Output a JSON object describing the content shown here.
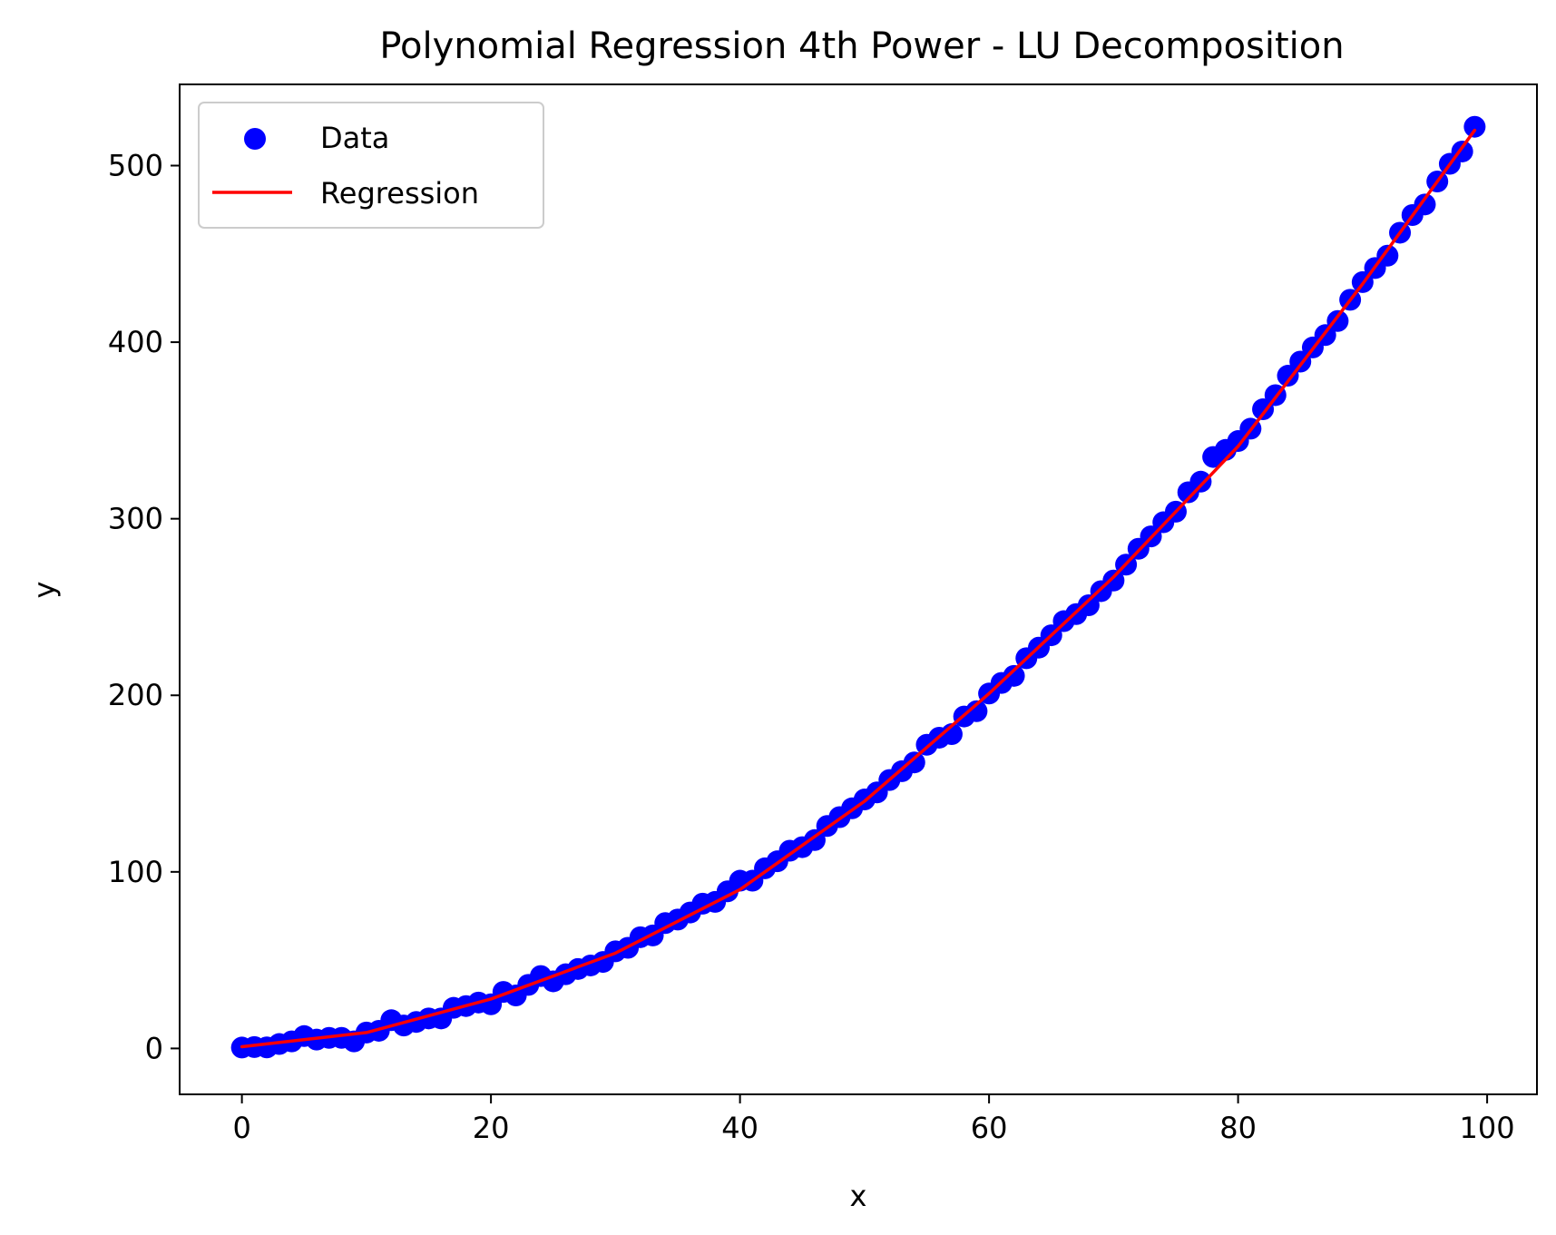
{
  "chart_data": {
    "type": "scatter",
    "title": "Polynomial Regression 4th Power - LU Decomposition",
    "xlabel": "x",
    "ylabel": "y",
    "xlim": [
      -5,
      104
    ],
    "ylim": [
      -26,
      546
    ],
    "xticks": [
      0,
      20,
      40,
      60,
      80,
      100
    ],
    "yticks": [
      0,
      100,
      200,
      300,
      400,
      500
    ],
    "grid": false,
    "legend": {
      "placement": "upper-left",
      "entries": [
        "Data",
        "Regression"
      ]
    },
    "series": [
      {
        "name": "Data",
        "kind": "scatter",
        "color": "#0000ff",
        "x": [
          0,
          1,
          2,
          3,
          4,
          5,
          6,
          7,
          8,
          9,
          10,
          11,
          12,
          13,
          14,
          15,
          16,
          17,
          18,
          19,
          20,
          21,
          22,
          23,
          24,
          25,
          26,
          27,
          28,
          29,
          30,
          31,
          32,
          33,
          34,
          35,
          36,
          37,
          38,
          39,
          40,
          41,
          42,
          43,
          44,
          45,
          46,
          47,
          48,
          49,
          50,
          51,
          52,
          53,
          54,
          55,
          56,
          57,
          58,
          59,
          60,
          61,
          62,
          63,
          64,
          65,
          66,
          67,
          68,
          69,
          70,
          71,
          72,
          73,
          74,
          75,
          76,
          77,
          78,
          79,
          80,
          81,
          82,
          83,
          84,
          85,
          86,
          87,
          88,
          89,
          90,
          91,
          92,
          93,
          94,
          95,
          96,
          97,
          98,
          99
        ],
        "y": [
          0.5,
          0.8,
          0.6,
          2.5,
          4,
          7,
          5,
          6,
          6,
          4,
          9,
          10,
          16,
          13,
          15,
          17,
          17,
          23,
          24,
          26,
          25,
          32,
          30,
          36,
          41,
          38,
          42,
          45,
          47,
          49,
          55,
          57,
          63,
          64,
          71,
          73,
          77,
          82,
          83,
          89,
          95,
          95,
          102,
          106,
          112,
          114,
          118,
          126,
          131,
          136,
          141,
          145,
          152,
          157,
          162,
          172,
          176,
          178,
          188,
          191,
          201,
          207,
          211,
          221,
          227,
          234,
          242,
          246,
          251,
          259,
          265,
          274,
          283,
          290,
          298,
          304,
          315,
          321,
          335,
          339,
          344,
          351,
          362,
          370,
          381,
          389,
          397,
          404,
          412,
          424,
          434,
          442,
          449,
          462,
          472,
          478,
          491,
          501,
          508,
          522
        ]
      },
      {
        "name": "Regression",
        "kind": "line",
        "color": "#ff0000",
        "x": [
          0,
          10,
          20,
          30,
          40,
          50,
          60,
          70,
          80,
          90,
          99
        ],
        "y": [
          1,
          9,
          28,
          54,
          90,
          140,
          201,
          267,
          341,
          433,
          520
        ]
      }
    ]
  }
}
